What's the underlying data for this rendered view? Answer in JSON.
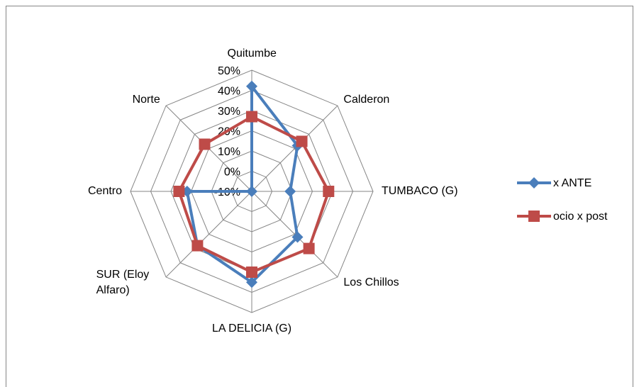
{
  "chart_data": {
    "type": "radar",
    "categories": [
      "Quitumbe",
      "Calderon",
      "TUMBACO (G)",
      "Los Chillos",
      "LA DELICIA (G)",
      "SUR (Eloy Alfaro)",
      "Centro",
      "Norte"
    ],
    "series": [
      {
        "name": "x ANTE",
        "color": "#4a7ebb",
        "marker": "diamond",
        "values": [
          42,
          22,
          9,
          22,
          35,
          28,
          22,
          -10
        ]
      },
      {
        "name": "ocio x post",
        "color": "#be4b48",
        "marker": "square",
        "values": [
          27,
          25,
          28,
          30,
          30,
          28,
          26,
          23
        ]
      }
    ],
    "ylim": [
      -10,
      50
    ],
    "yticks": [
      {
        "value": -10,
        "label": "-10%"
      },
      {
        "value": 0,
        "label": "0%"
      },
      {
        "value": 10,
        "label": "10%"
      },
      {
        "value": 20,
        "label": "20%"
      },
      {
        "value": 30,
        "label": "30%"
      },
      {
        "value": 40,
        "label": "40%"
      },
      {
        "value": 50,
        "label": "50%"
      }
    ],
    "grid": true,
    "legend": "right"
  }
}
